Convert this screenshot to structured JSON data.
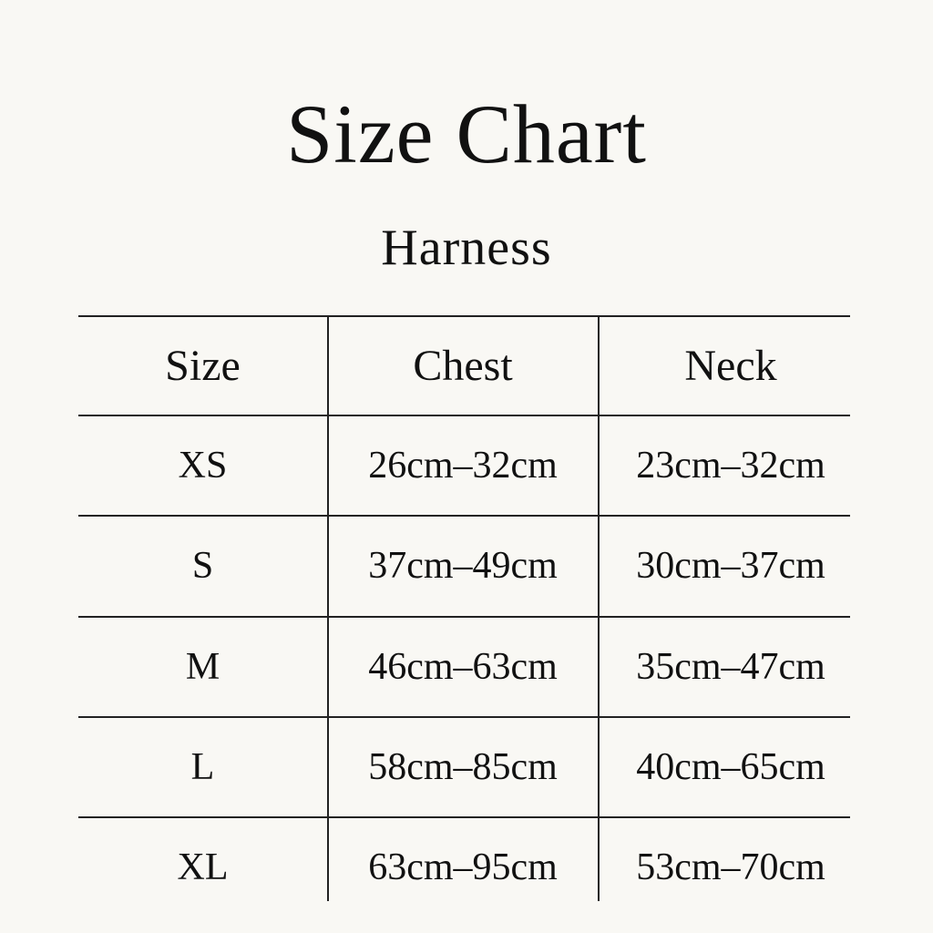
{
  "title": "Size Chart",
  "subtitle": "Harness",
  "table": {
    "headers": [
      "Size",
      "Chest",
      "Neck"
    ],
    "rows": [
      [
        "XS",
        "26cm–32cm",
        "23cm–32cm"
      ],
      [
        "S",
        "37cm–49cm",
        "30cm–37cm"
      ],
      [
        "M",
        "46cm–63cm",
        "35cm–47cm"
      ],
      [
        "L",
        "58cm–85cm",
        "40cm–65cm"
      ],
      [
        "XL",
        "63cm–95cm",
        "53cm–70cm"
      ]
    ]
  }
}
